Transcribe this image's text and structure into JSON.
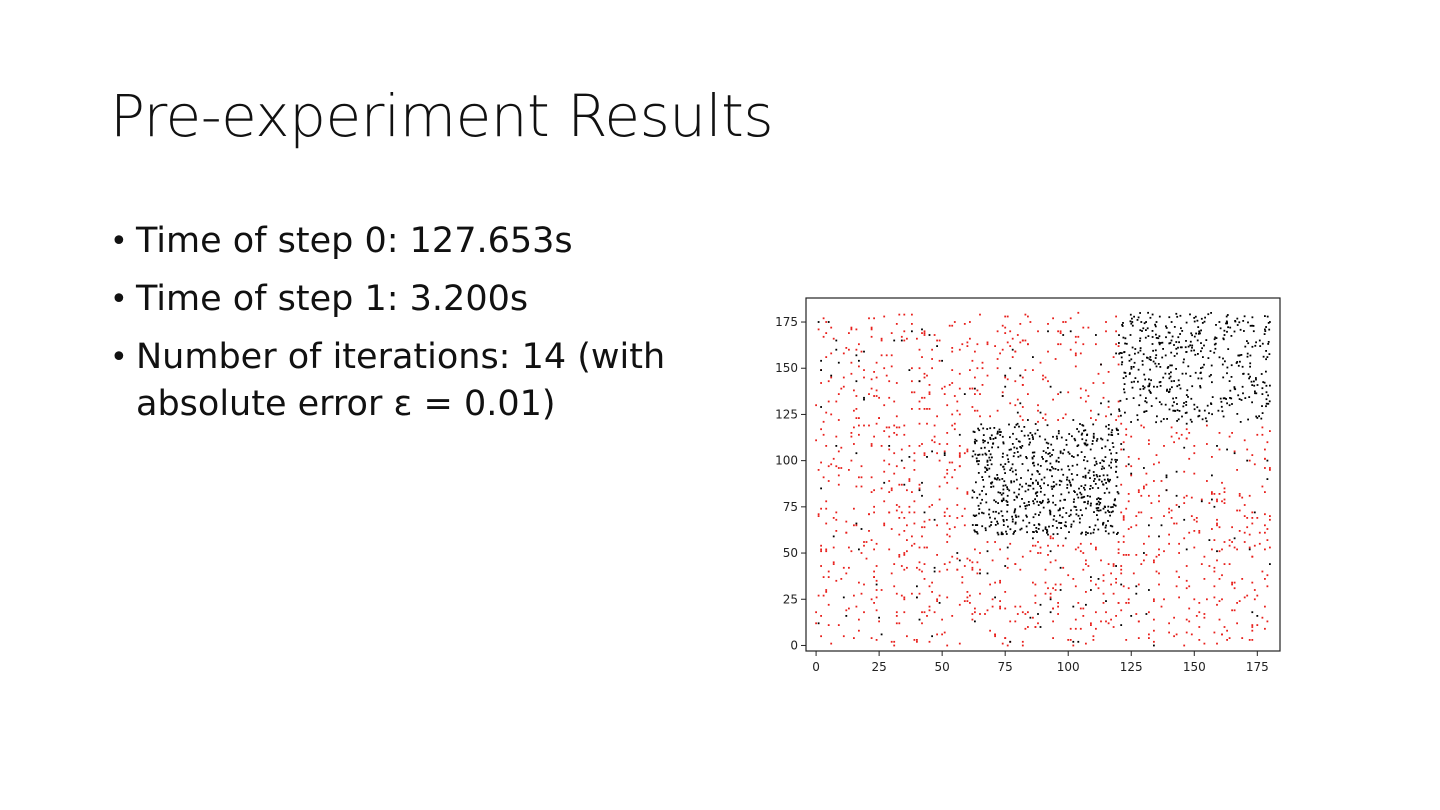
{
  "slide": {
    "title": "Pre-experiment Results",
    "bullets": [
      "Time of step 0: 127.653s",
      "Time of step 1: 3.200s",
      "Number of iterations: 14 (with absolute error ε = 0.01)"
    ],
    "bullet_glyph": "•"
  },
  "chart_data": {
    "type": "scatter",
    "xlim": [
      -4,
      184
    ],
    "ylim": [
      -3,
      188
    ],
    "x_ticks": [
      0,
      25,
      50,
      75,
      100,
      125,
      150,
      175
    ],
    "y_ticks": [
      0,
      25,
      50,
      75,
      100,
      125,
      150,
      175
    ],
    "x_tick_labels": [
      "0",
      "25",
      "50",
      "75",
      "100",
      "125",
      "150",
      "175"
    ],
    "y_tick_labels": [
      "0",
      "25",
      "50",
      "75",
      "100",
      "125",
      "150",
      "175"
    ],
    "grid": false,
    "legend": "none",
    "series": [
      {
        "color": "#e8201c",
        "point_count": 1100,
        "region": {
          "x": [
            0,
            180
          ],
          "y": [
            0,
            180
          ],
          "excluding": [
            {
              "x": [
                62,
                120
              ],
              "y": [
                60,
                120
              ]
            },
            {
              "x": [
                122,
                180
              ],
              "y": [
                120,
                180
              ]
            }
          ]
        }
      },
      {
        "color": "#000000",
        "clusters": [
          {
            "x": [
              62,
              120
            ],
            "y": [
              60,
              120
            ],
            "point_count": 650
          },
          {
            "x": [
              120,
              180
            ],
            "y": [
              120,
              180
            ],
            "point_count": 450
          }
        ],
        "scattered_point_count": 200
      }
    ]
  }
}
